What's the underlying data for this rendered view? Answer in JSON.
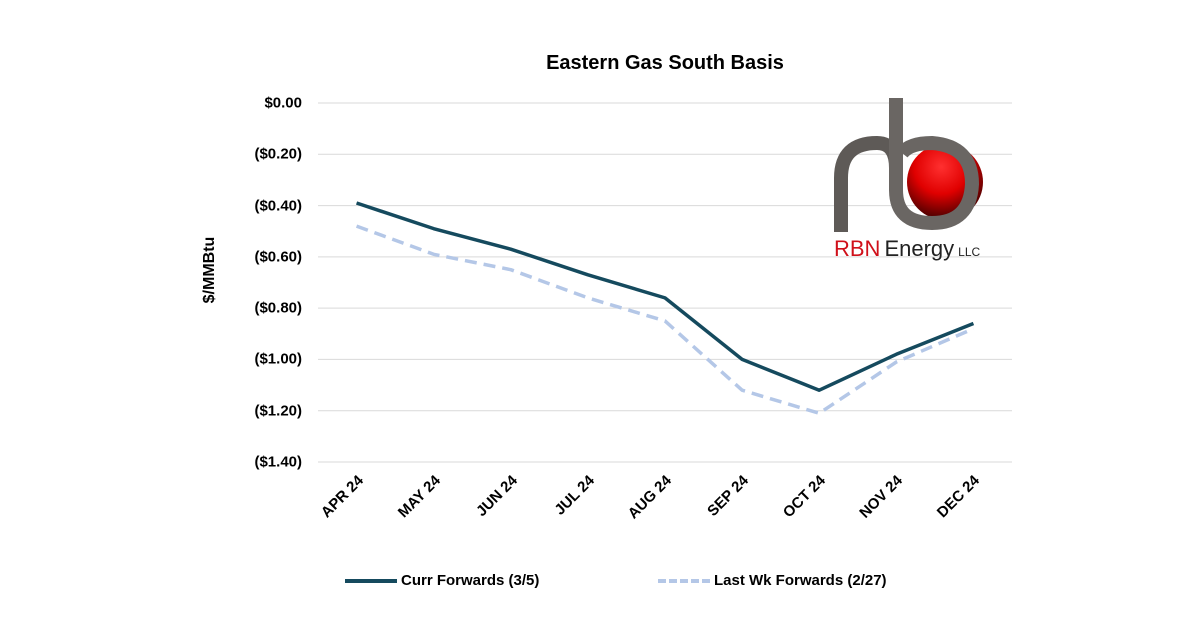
{
  "chart_data": {
    "type": "line",
    "title": "Eastern Gas South Basis",
    "xlabel": "",
    "ylabel": "$/MMBtu",
    "ylim": [
      -1.4,
      0.0
    ],
    "yticks": [
      0.0,
      -0.2,
      -0.4,
      -0.6,
      -0.8,
      -1.0,
      -1.2,
      -1.4
    ],
    "ytick_labels": [
      "$0.00",
      "($0.20)",
      "($0.40)",
      "($0.60)",
      "($0.80)",
      "($1.00)",
      "($1.20)",
      "($1.40)"
    ],
    "categories": [
      "APR 24",
      "MAY 24",
      "JUN 24",
      "JUL 24",
      "AUG 24",
      "SEP 24",
      "OCT 24",
      "NOV 24",
      "DEC 24"
    ],
    "grid": true,
    "legend_position": "bottom",
    "series": [
      {
        "name": "Curr Forwards (3/5)",
        "color": "#154a5e",
        "style": "solid",
        "values": [
          -0.39,
          -0.49,
          -0.57,
          -0.67,
          -0.76,
          -1.0,
          -1.12,
          -0.98,
          -0.86
        ]
      },
      {
        "name": "Last Wk Forwards (2/27)",
        "color": "#b4c7e7",
        "style": "dashed",
        "values": [
          -0.48,
          -0.59,
          -0.65,
          -0.76,
          -0.85,
          -1.12,
          -1.21,
          -1.01,
          -0.88
        ]
      }
    ]
  },
  "logo": {
    "brand_red": "RBN",
    "brand_rest": "Energy",
    "suffix": "LLC"
  }
}
